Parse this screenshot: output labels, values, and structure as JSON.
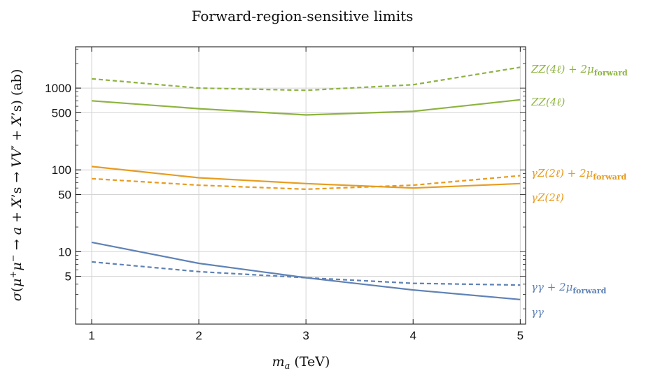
{
  "chart_data": {
    "type": "line",
    "title": "Forward-region-sensitive limits",
    "xlabel": "m_a (TeV)",
    "ylabel": "σ(μ⁺μ⁻ → a + X's → VV′ + X's) (ab)",
    "x": [
      1,
      2,
      3,
      4,
      5
    ],
    "xlim": [
      0.85,
      5.05
    ],
    "ylim": [
      1.3,
      3200
    ],
    "yscale": "log",
    "grid": true,
    "x_ticks": [
      "1",
      "2",
      "3",
      "4",
      "5"
    ],
    "y_ticks": [
      {
        "value": 5,
        "label": "5"
      },
      {
        "value": 10,
        "label": "10"
      },
      {
        "value": 50,
        "label": "50"
      },
      {
        "value": 100,
        "label": "100"
      },
      {
        "value": 500,
        "label": "500"
      },
      {
        "value": 1000,
        "label": "1000"
      }
    ],
    "series": [
      {
        "name": "ZZ(4ℓ) + 2μforward",
        "color": "#8db33f",
        "dashed": true,
        "values": [
          1300,
          1000,
          940,
          1100,
          1800
        ]
      },
      {
        "name": "ZZ(4ℓ)",
        "color": "#8db33f",
        "dashed": false,
        "values": [
          700,
          560,
          470,
          520,
          720
        ]
      },
      {
        "name": "γZ(2ℓ) + 2μforward",
        "color": "#e79c20",
        "dashed": true,
        "values": [
          78,
          65,
          58,
          65,
          85
        ]
      },
      {
        "name": "γZ(2ℓ)",
        "color": "#e79c20",
        "dashed": false,
        "values": [
          110,
          80,
          68,
          60,
          68
        ]
      },
      {
        "name": "γγ + 2μforward",
        "color": "#5f82b5",
        "dashed": true,
        "values": [
          7.5,
          5.7,
          4.8,
          4.1,
          3.9
        ]
      },
      {
        "name": "γγ",
        "color": "#5f82b5",
        "dashed": false,
        "values": [
          13,
          7.2,
          4.8,
          3.4,
          2.6
        ]
      }
    ]
  }
}
